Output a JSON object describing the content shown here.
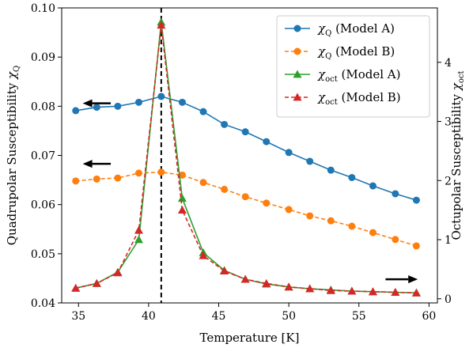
{
  "chart_data": {
    "type": "line",
    "xlabel": "Temperature [K]",
    "ylabel_left": {
      "symbol": "χ",
      "sub": "Q",
      "prefix": "Quadrupolar Susceptibility "
    },
    "ylabel_right": {
      "symbol": "χ",
      "sub": "oct",
      "prefix": "Octupolar Susceptibility "
    },
    "xlim": [
      33.8,
      60.6
    ],
    "ylim_left": [
      0.04,
      0.1
    ],
    "ylim_right": [
      -0.07,
      4.92
    ],
    "x_ticks": [
      35,
      40,
      45,
      50,
      55,
      60
    ],
    "y_ticks_left": [
      0.04,
      0.05,
      0.06,
      0.07,
      0.08,
      0.09,
      0.1
    ],
    "y_tick_labels_left": [
      "0.04",
      "0.05",
      "0.06",
      "0.07",
      "0.08",
      "0.09",
      "0.10"
    ],
    "y_ticks_right": [
      0,
      1,
      2,
      3,
      4
    ],
    "y_tick_labels_right": [
      "0",
      "1",
      "2",
      "3",
      "4"
    ],
    "vline_x": 40.9,
    "legend_position": "upper-right",
    "x": [
      34.8,
      36.3,
      37.8,
      39.3,
      40.9,
      42.4,
      43.9,
      45.4,
      46.9,
      48.4,
      50.0,
      51.5,
      53.0,
      54.5,
      56.0,
      57.6,
      59.1
    ],
    "series": [
      {
        "name": {
          "symbol": "χ",
          "sub": "Q",
          "suffix": " (Model A)"
        },
        "axis": "left",
        "color": "#1f77b4",
        "style": "solid",
        "marker": "circle",
        "values": [
          0.0791,
          0.0798,
          0.08,
          0.0808,
          0.082,
          0.0808,
          0.0789,
          0.0763,
          0.0748,
          0.0728,
          0.0706,
          0.0688,
          0.067,
          0.0655,
          0.0638,
          0.0622,
          0.0609
        ]
      },
      {
        "name": {
          "symbol": "χ",
          "sub": "Q",
          "suffix": " (Model B)"
        },
        "axis": "left",
        "color": "#ff7f0e",
        "style": "dashed",
        "marker": "circle",
        "values": [
          0.0648,
          0.0652,
          0.0654,
          0.0664,
          0.0666,
          0.066,
          0.0645,
          0.0631,
          0.0616,
          0.0603,
          0.059,
          0.0577,
          0.0567,
          0.0556,
          0.0543,
          0.0529,
          0.0516
        ]
      },
      {
        "name": {
          "symbol": "χ",
          "sub": "oct",
          "suffix": " (Model A)"
        },
        "axis": "right",
        "color": "#2ca02c",
        "style": "solid",
        "marker": "triangle",
        "values": [
          0.18,
          0.26,
          0.45,
          1.0,
          4.68,
          1.7,
          0.78,
          0.48,
          0.33,
          0.25,
          0.2,
          0.17,
          0.15,
          0.13,
          0.12,
          0.11,
          0.1
        ]
      },
      {
        "name": {
          "symbol": "χ",
          "sub": "oct",
          "suffix": " (Model B)"
        },
        "axis": "right",
        "color": "#d62728",
        "style": "dashed",
        "marker": "triangle",
        "values": [
          0.18,
          0.26,
          0.44,
          1.16,
          4.63,
          1.5,
          0.73,
          0.47,
          0.33,
          0.26,
          0.2,
          0.17,
          0.14,
          0.13,
          0.12,
          0.11,
          0.1
        ]
      }
    ],
    "axis_arrows": [
      {
        "points_to": "left",
        "series_axis": "left",
        "x_from": 37.3,
        "x_to": 35.3,
        "y": 0.0806
      },
      {
        "points_to": "left",
        "series_axis": "left",
        "x_from": 37.3,
        "x_to": 35.3,
        "y": 0.0683
      },
      {
        "points_to": "right",
        "series_axis": "right",
        "x_from": 56.9,
        "x_to": 59.2,
        "y": 0.33
      }
    ]
  }
}
